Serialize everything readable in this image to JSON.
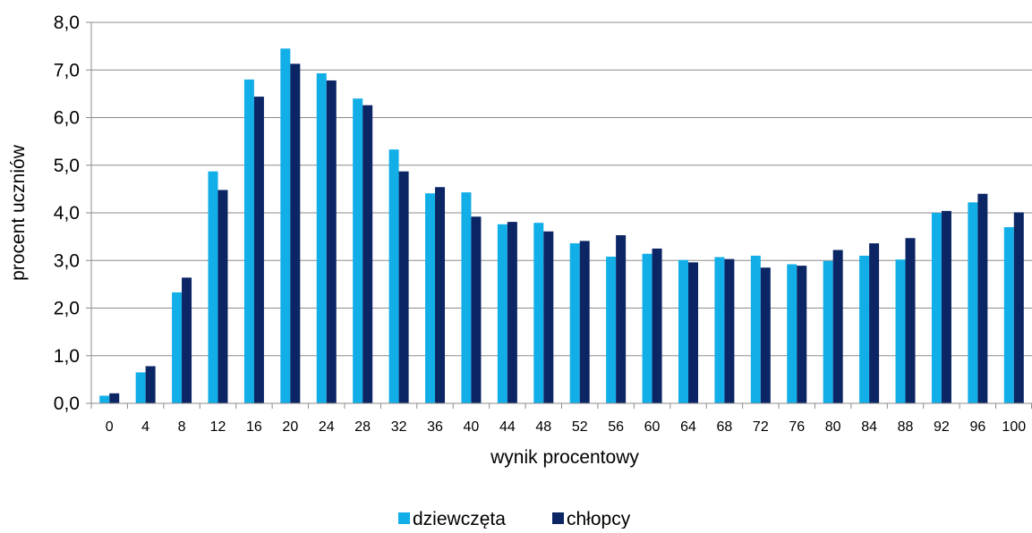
{
  "chart_data": {
    "type": "bar",
    "title": "",
    "xlabel": "wynik procentowy",
    "ylabel": "procent uczniów",
    "ylim": [
      0,
      8
    ],
    "y_ticks": [
      "0,0",
      "1,0",
      "2,0",
      "3,0",
      "4,0",
      "5,0",
      "6,0",
      "7,0",
      "8,0"
    ],
    "y_tick_values": [
      0,
      1,
      2,
      3,
      4,
      5,
      6,
      7,
      8
    ],
    "grid": true,
    "legend_position": "bottom",
    "categories": [
      "0",
      "4",
      "8",
      "12",
      "16",
      "20",
      "24",
      "28",
      "32",
      "36",
      "40",
      "44",
      "48",
      "52",
      "56",
      "60",
      "64",
      "68",
      "72",
      "76",
      "80",
      "84",
      "88",
      "92",
      "96",
      "100"
    ],
    "series": [
      {
        "name": "dziewczęta",
        "color": "#12AEE8",
        "values": [
          0.16,
          0.65,
          2.33,
          4.87,
          6.8,
          7.45,
          6.93,
          6.4,
          5.33,
          4.41,
          4.43,
          3.76,
          3.79,
          3.36,
          3.08,
          3.14,
          3.01,
          3.07,
          3.1,
          2.92,
          2.99,
          3.1,
          3.02,
          4.0,
          4.22,
          3.7
        ]
      },
      {
        "name": "chłopcy",
        "color": "#0B2565",
        "values": [
          0.21,
          0.78,
          2.64,
          4.48,
          6.44,
          7.13,
          6.78,
          6.26,
          4.87,
          4.54,
          3.92,
          3.81,
          3.61,
          3.41,
          3.53,
          3.25,
          2.96,
          3.03,
          2.85,
          2.89,
          3.22,
          3.36,
          3.47,
          4.04,
          4.4,
          4.01
        ]
      }
    ]
  }
}
